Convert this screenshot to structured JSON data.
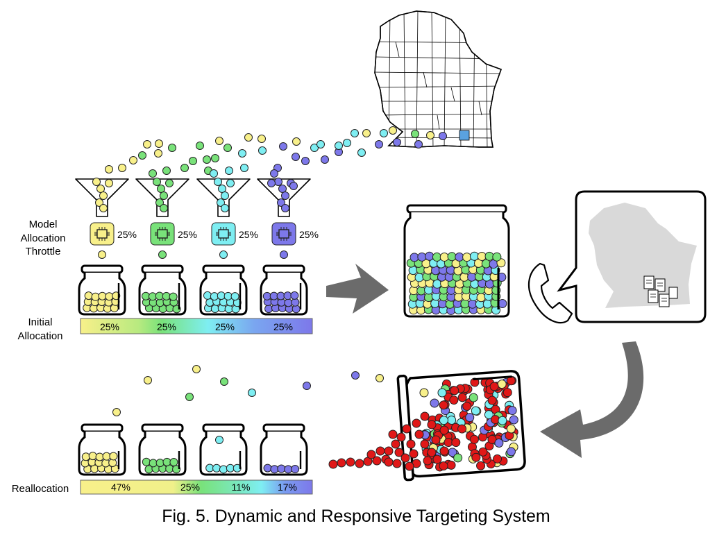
{
  "labels": {
    "model_allocation": [
      "Model",
      "Allocation",
      "Throttle"
    ],
    "initial_allocation": [
      "Initial",
      "Allocation"
    ],
    "reallocation": "Reallocation",
    "caption": "Fig. 5. Dynamic and Responsive Targeting System"
  },
  "models": [
    {
      "name": "model-1",
      "color": "#f8f08a",
      "throttle": "25%"
    },
    {
      "name": "model-2",
      "color": "#79e27a",
      "throttle": "25%"
    },
    {
      "name": "model-3",
      "color": "#7eeef2",
      "throttle": "25%"
    },
    {
      "name": "model-4",
      "color": "#7d78ea",
      "throttle": "25%"
    }
  ],
  "initial_allocation": [
    "25%",
    "25%",
    "25%",
    "25%"
  ],
  "reallocation": [
    "47%",
    "25%",
    "11%",
    "17%"
  ],
  "reallocation_fractions": [
    0.47,
    0.25,
    0.11,
    0.17
  ],
  "colors": {
    "yellow": "#f8f08a",
    "green": "#79e27a",
    "cyan": "#7eeef2",
    "purple": "#7d78ea",
    "red": "#e01818",
    "arrow": "#6b6b6b",
    "state_fill": "#d9d9d9",
    "county_highlight": "#5aa2e0"
  },
  "icons": [
    "chip-icon",
    "phone-icon",
    "speech-bubble-icon",
    "clipboard-icon",
    "wisconsin-map",
    "funnel-icon",
    "jar-icon",
    "arrow-icon"
  ]
}
